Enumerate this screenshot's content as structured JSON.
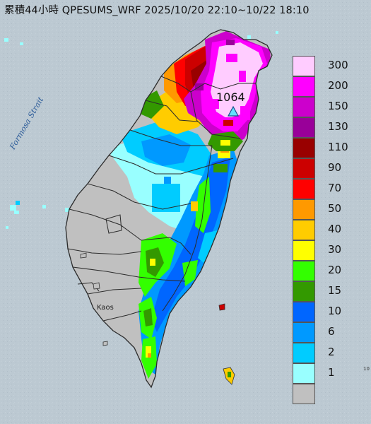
{
  "title": "累積44小時 QPESUMS_WRF 2025/10/20 22:10~10/22 18:10",
  "water_label": "Formosa Strait",
  "place_label": "Kaos",
  "max_point": {
    "value_label": "1064",
    "marker": "triangle-marker"
  },
  "edge_mark": "10",
  "legend": [
    {
      "label": "300",
      "color": "#ffccff"
    },
    {
      "label": "200",
      "color": "#ff00ff"
    },
    {
      "label": "150",
      "color": "#cc00cc"
    },
    {
      "label": "130",
      "color": "#990099"
    },
    {
      "label": "110",
      "color": "#990000"
    },
    {
      "label": "90",
      "color": "#cc0000"
    },
    {
      "label": "70",
      "color": "#ff0000"
    },
    {
      "label": "50",
      "color": "#ff9900"
    },
    {
      "label": "40",
      "color": "#ffcc00"
    },
    {
      "label": "30",
      "color": "#ffff00"
    },
    {
      "label": "20",
      "color": "#33ff00"
    },
    {
      "label": "15",
      "color": "#339900"
    },
    {
      "label": "10",
      "color": "#0066ff"
    },
    {
      "label": "6",
      "color": "#0099ff"
    },
    {
      "label": "2",
      "color": "#00ccff"
    },
    {
      "label": "1",
      "color": "#99ffff"
    },
    {
      "label": "",
      "color": "#c0c0c0"
    }
  ],
  "colors": {
    "sea": "#b9c6cf",
    "no_rain": "#c0c0c0",
    "border": "#333333"
  }
}
